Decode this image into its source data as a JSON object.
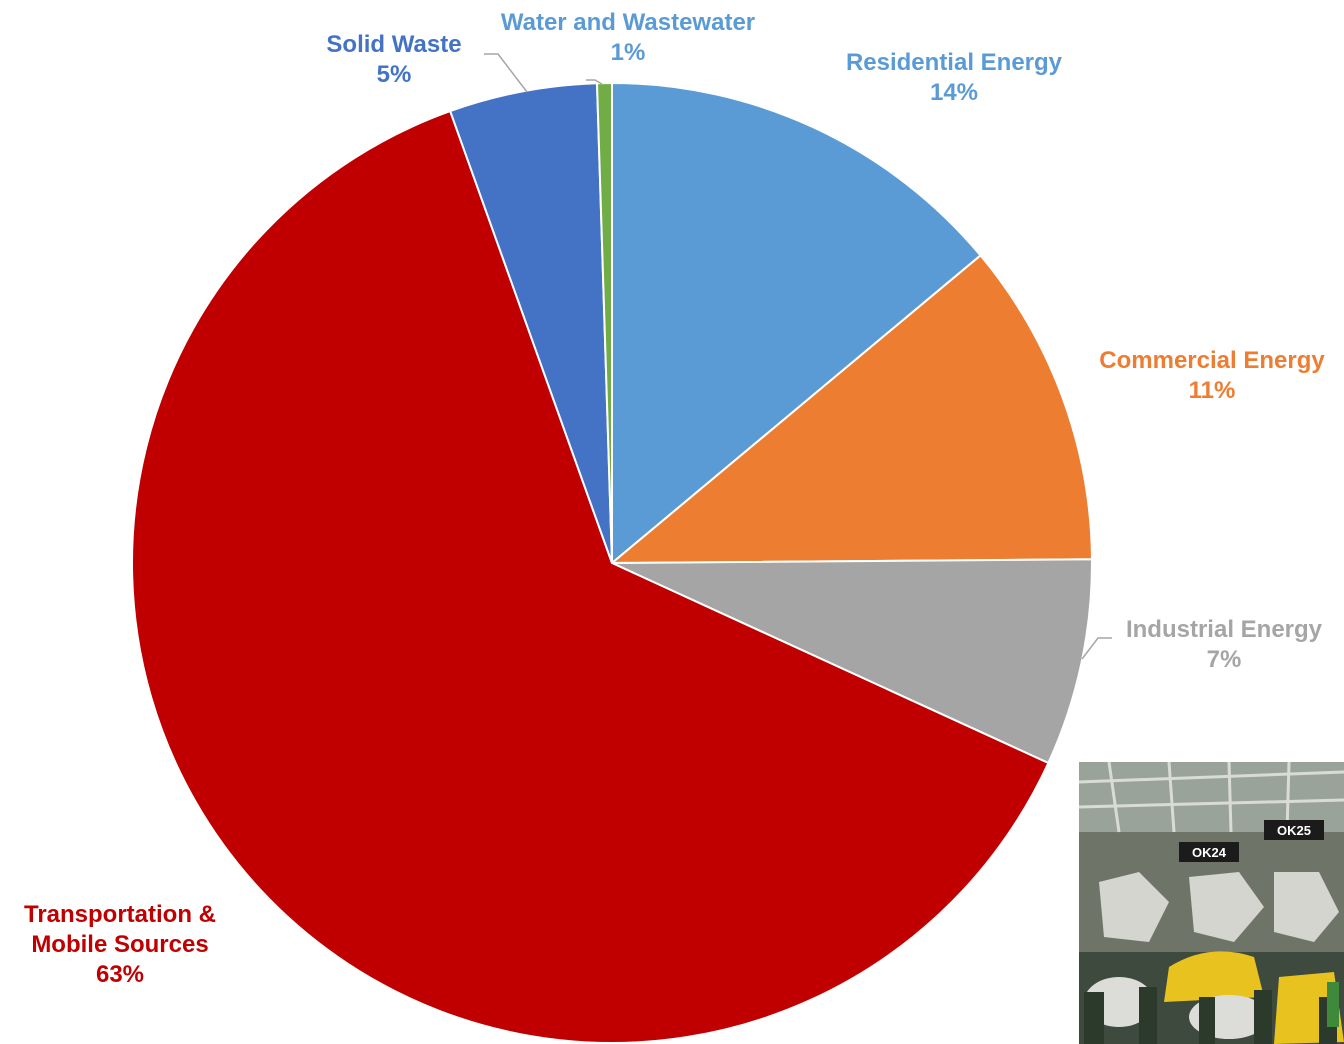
{
  "chart_data": {
    "type": "pie",
    "title": "",
    "slices": [
      {
        "name": "Residential Energy",
        "value": 14,
        "label": "Residential Energy",
        "pct": "14%",
        "color": "#5b9bd5"
      },
      {
        "name": "Commercial Energy",
        "value": 11,
        "label": "Commercial Energy",
        "pct": "11%",
        "color": "#ed7d31"
      },
      {
        "name": "Industrial Energy",
        "value": 7,
        "label": "Industrial Energy",
        "pct": "7%",
        "color": "#a5a5a5"
      },
      {
        "name": "Transportation & Mobile Sources",
        "value": 63,
        "label": [
          "Transportation &",
          "Mobile Sources"
        ],
        "pct": "63%",
        "color": "#c00000"
      },
      {
        "name": "Solid Waste",
        "value": 5,
        "label": "Solid Waste",
        "pct": "5%",
        "color": "#4472c4"
      },
      {
        "name": "Water and Wastewater",
        "value": 0.5,
        "label": "Water and Wastewater",
        "pct": "1%",
        "color": "#70ad47"
      }
    ],
    "label_colors": {
      "Residential Energy": "#5b9bd5",
      "Commercial Energy": "#ed7d31",
      "Industrial Energy": "#a5a5a5",
      "Transportation & Mobile Sources": "#c00000",
      "Solid Waste": "#4472c4",
      "Water and Wastewater": "#5b9bd5"
    },
    "legend": "none"
  },
  "photo": {
    "signs": [
      "OK24",
      "OK25"
    ],
    "description_icon": "factory-photo"
  }
}
